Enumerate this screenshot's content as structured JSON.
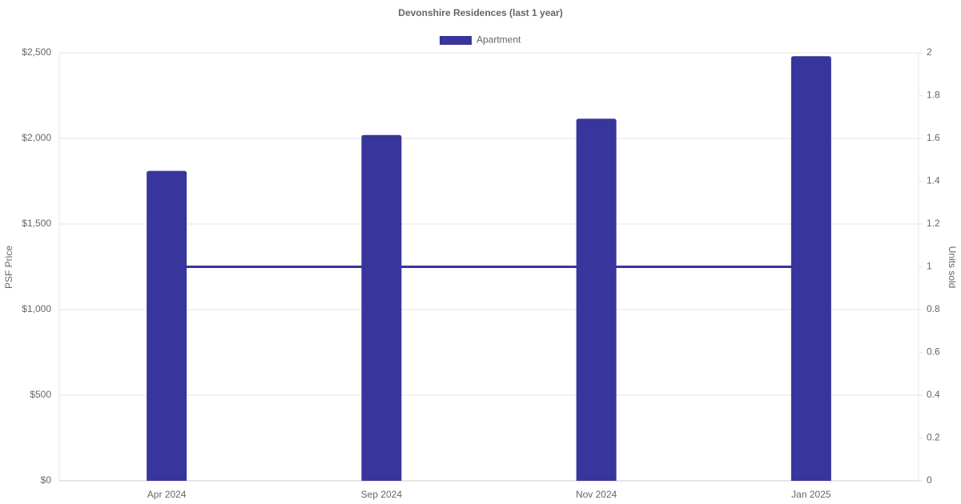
{
  "chart_data": {
    "type": "bar",
    "title": "Devonshire Residences (last 1 year)",
    "categories": [
      "Apr 2024",
      "Sep 2024",
      "Nov 2024",
      "Jan 2025"
    ],
    "series": [
      {
        "name": "Apartment",
        "color": "#38359c",
        "values": [
          1810,
          2020,
          2115,
          2480
        ]
      },
      {
        "type": "line",
        "axis": "y2",
        "color": "#38359c",
        "values": [
          1,
          1,
          1,
          1
        ]
      }
    ],
    "ylabel": "PSF Price",
    "y2label": "Units sold",
    "ylim": [
      0,
      2500
    ],
    "yticks": [
      {
        "value": 0,
        "label": "$0"
      },
      {
        "value": 500,
        "label": "$500"
      },
      {
        "value": 1000,
        "label": "$1,000"
      },
      {
        "value": 1500,
        "label": "$1,500"
      },
      {
        "value": 2000,
        "label": "$2,000"
      },
      {
        "value": 2500,
        "label": "$2,500"
      }
    ],
    "y2lim": [
      0,
      2
    ],
    "y2ticks": [
      0,
      0.2,
      0.4,
      0.6,
      0.8,
      1,
      1.2,
      1.4,
      1.6,
      1.8,
      2
    ],
    "grid": true,
    "legend": "top"
  }
}
